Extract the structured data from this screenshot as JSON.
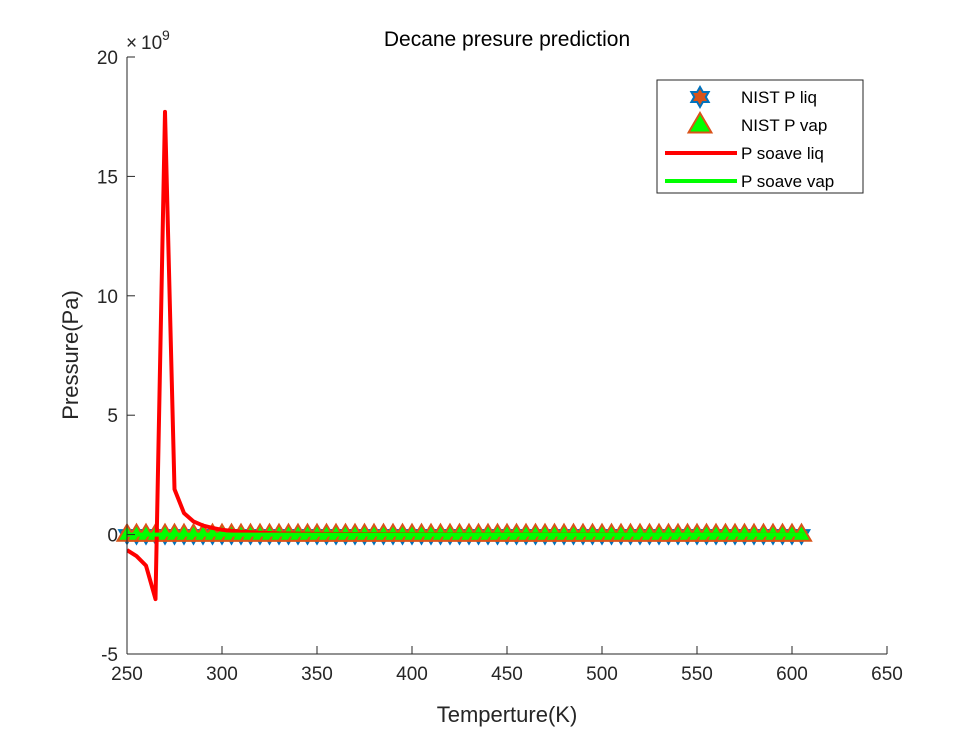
{
  "chart_data": {
    "type": "line",
    "title": "Decane presure prediction",
    "xlabel": "Temperture(K)",
    "ylabel": "Pressure(Pa)",
    "xlim": [
      250,
      650
    ],
    "ylim": [
      -5,
      20
    ],
    "y_scale_multiplier": "10",
    "y_scale_exponent": "9",
    "y_scale_prefix": "×",
    "xticks": [
      "250",
      "300",
      "350",
      "400",
      "450",
      "500",
      "550",
      "600",
      "650"
    ],
    "yticks": [
      "-5",
      "0",
      "5",
      "10",
      "15",
      "20"
    ],
    "grid": false,
    "legend_position": "top-right",
    "series": [
      {
        "name": "NIST P liq",
        "kind": "marker",
        "marker": "hexagram",
        "color": "#0072BD",
        "face_color": "#D95319",
        "x_start": 250,
        "x_end": 606,
        "x_step": 5,
        "y_constant": 0
      },
      {
        "name": "NIST P vap",
        "kind": "marker",
        "marker": "triangle",
        "color": "#D95319",
        "face_color": "#00FF00",
        "x_start": 250,
        "x_end": 606,
        "x_step": 5,
        "y_constant": 0
      },
      {
        "name": "P soave liq",
        "kind": "line",
        "color": "#FF0000",
        "x": [
          250,
          255,
          260,
          265,
          270,
          275,
          280,
          285,
          290,
          295,
          300,
          310,
          320,
          330,
          350,
          400,
          450,
          500,
          550,
          600,
          606
        ],
        "y": [
          -0.65,
          -0.9,
          -1.3,
          -2.7,
          17.7,
          1.9,
          0.9,
          0.55,
          0.38,
          0.28,
          0.2,
          0.12,
          0.08,
          0.05,
          0.03,
          0.015,
          0.01,
          0.007,
          0.005,
          0.003,
          0.003
        ]
      },
      {
        "name": "P soave vap",
        "kind": "line",
        "color": "#00FF00",
        "x": [
          250,
          606
        ],
        "y": [
          0,
          0
        ]
      }
    ]
  }
}
